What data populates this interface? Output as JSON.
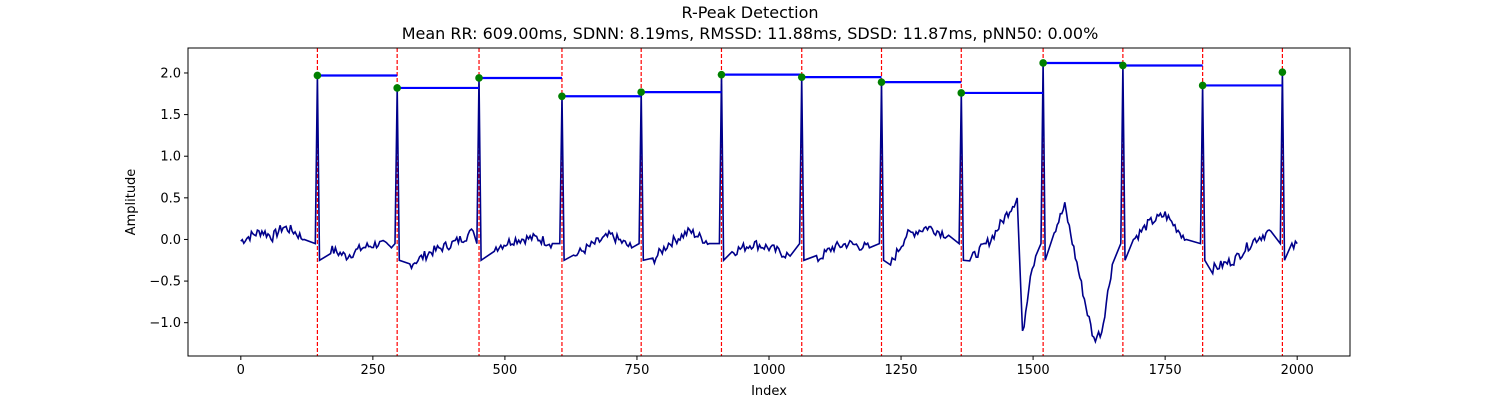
{
  "chart_data": {
    "type": "line",
    "title": "R-Peak Detection",
    "subtitle": "Mean RR: 609.00ms, SDNN: 8.19ms, RMSSD: 11.88ms, SDSD: 11.87ms, pNN50: 0.00%",
    "xlabel": "Index",
    "ylabel": "Amplitude",
    "xlim": [
      -100,
      2100
    ],
    "ylim": [
      -1.4,
      2.3
    ],
    "xticks": [
      0,
      250,
      500,
      750,
      1000,
      1250,
      1500,
      1750,
      2000
    ],
    "xtick_labels": [
      "0",
      "250",
      "500",
      "750",
      "1000",
      "1250",
      "1500",
      "1750",
      "2000"
    ],
    "yticks": [
      -1.0,
      -0.5,
      0.0,
      0.5,
      1.0,
      1.5,
      2.0
    ],
    "ytick_labels": [
      "−1.0",
      "−0.5",
      "0.0",
      "0.5",
      "1.0",
      "1.5",
      "2.0"
    ],
    "grid": false,
    "colors": {
      "signal": "#00008b",
      "peak_lines": "#ff0000",
      "peak_markers": "#008000",
      "rr_bars": "#0000ff"
    },
    "r_peaks": {
      "x": [
        145,
        296,
        451,
        608,
        758,
        910,
        1062,
        1213,
        1364,
        1519,
        1670,
        1821,
        1972
      ],
      "y": [
        1.97,
        1.82,
        1.94,
        1.72,
        1.77,
        1.98,
        1.95,
        1.89,
        1.76,
        2.12,
        2.09,
        1.85,
        2.01
      ]
    },
    "signal_features": {
      "baseline_points": [
        [
          0,
          -0.02
        ],
        [
          20,
          0.05
        ],
        [
          40,
          0.1
        ],
        [
          60,
          0.03
        ],
        [
          80,
          0.15
        ],
        [
          100,
          0.1
        ],
        [
          120,
          0.0
        ],
        [
          170,
          -0.12
        ],
        [
          200,
          -0.2
        ],
        [
          230,
          -0.1
        ],
        [
          260,
          -0.05
        ],
        [
          285,
          -0.1
        ],
        [
          320,
          -0.3
        ],
        [
          360,
          -0.15
        ],
        [
          400,
          -0.05
        ],
        [
          430,
          0.05
        ],
        [
          440,
          0.1
        ],
        [
          480,
          -0.1
        ],
        [
          520,
          0.0
        ],
        [
          560,
          0.02
        ],
        [
          590,
          -0.05
        ],
        [
          630,
          -0.2
        ],
        [
          670,
          -0.05
        ],
        [
          700,
          0.05
        ],
        [
          740,
          -0.1
        ],
        [
          780,
          -0.25
        ],
        [
          810,
          -0.05
        ],
        [
          850,
          0.1
        ],
        [
          890,
          -0.05
        ],
        [
          930,
          -0.15
        ],
        [
          970,
          -0.05
        ],
        [
          1000,
          -0.1
        ],
        [
          1040,
          -0.2
        ],
        [
          1090,
          -0.25
        ],
        [
          1120,
          -0.1
        ],
        [
          1150,
          -0.05
        ],
        [
          1190,
          -0.1
        ],
        [
          1230,
          -0.3
        ],
        [
          1260,
          0.05
        ],
        [
          1300,
          0.15
        ],
        [
          1340,
          0.05
        ],
        [
          1380,
          -0.25
        ],
        [
          1420,
          0.0
        ],
        [
          1450,
          0.3
        ],
        [
          1470,
          0.5
        ],
        [
          1480,
          -1.15
        ],
        [
          1495,
          -0.4
        ],
        [
          1505,
          -0.2
        ],
        [
          1540,
          0.1
        ],
        [
          1560,
          0.4
        ],
        [
          1580,
          -0.2
        ],
        [
          1600,
          -0.8
        ],
        [
          1615,
          -1.2
        ],
        [
          1630,
          -1.1
        ],
        [
          1650,
          -0.3
        ],
        [
          1690,
          0.0
        ],
        [
          1720,
          0.2
        ],
        [
          1750,
          0.3
        ],
        [
          1790,
          0.0
        ],
        [
          1840,
          -0.35
        ],
        [
          1880,
          -0.25
        ],
        [
          1920,
          0.0
        ],
        [
          1950,
          0.1
        ],
        [
          1990,
          -0.1
        ],
        [
          2000,
          -0.05
        ]
      ]
    }
  }
}
